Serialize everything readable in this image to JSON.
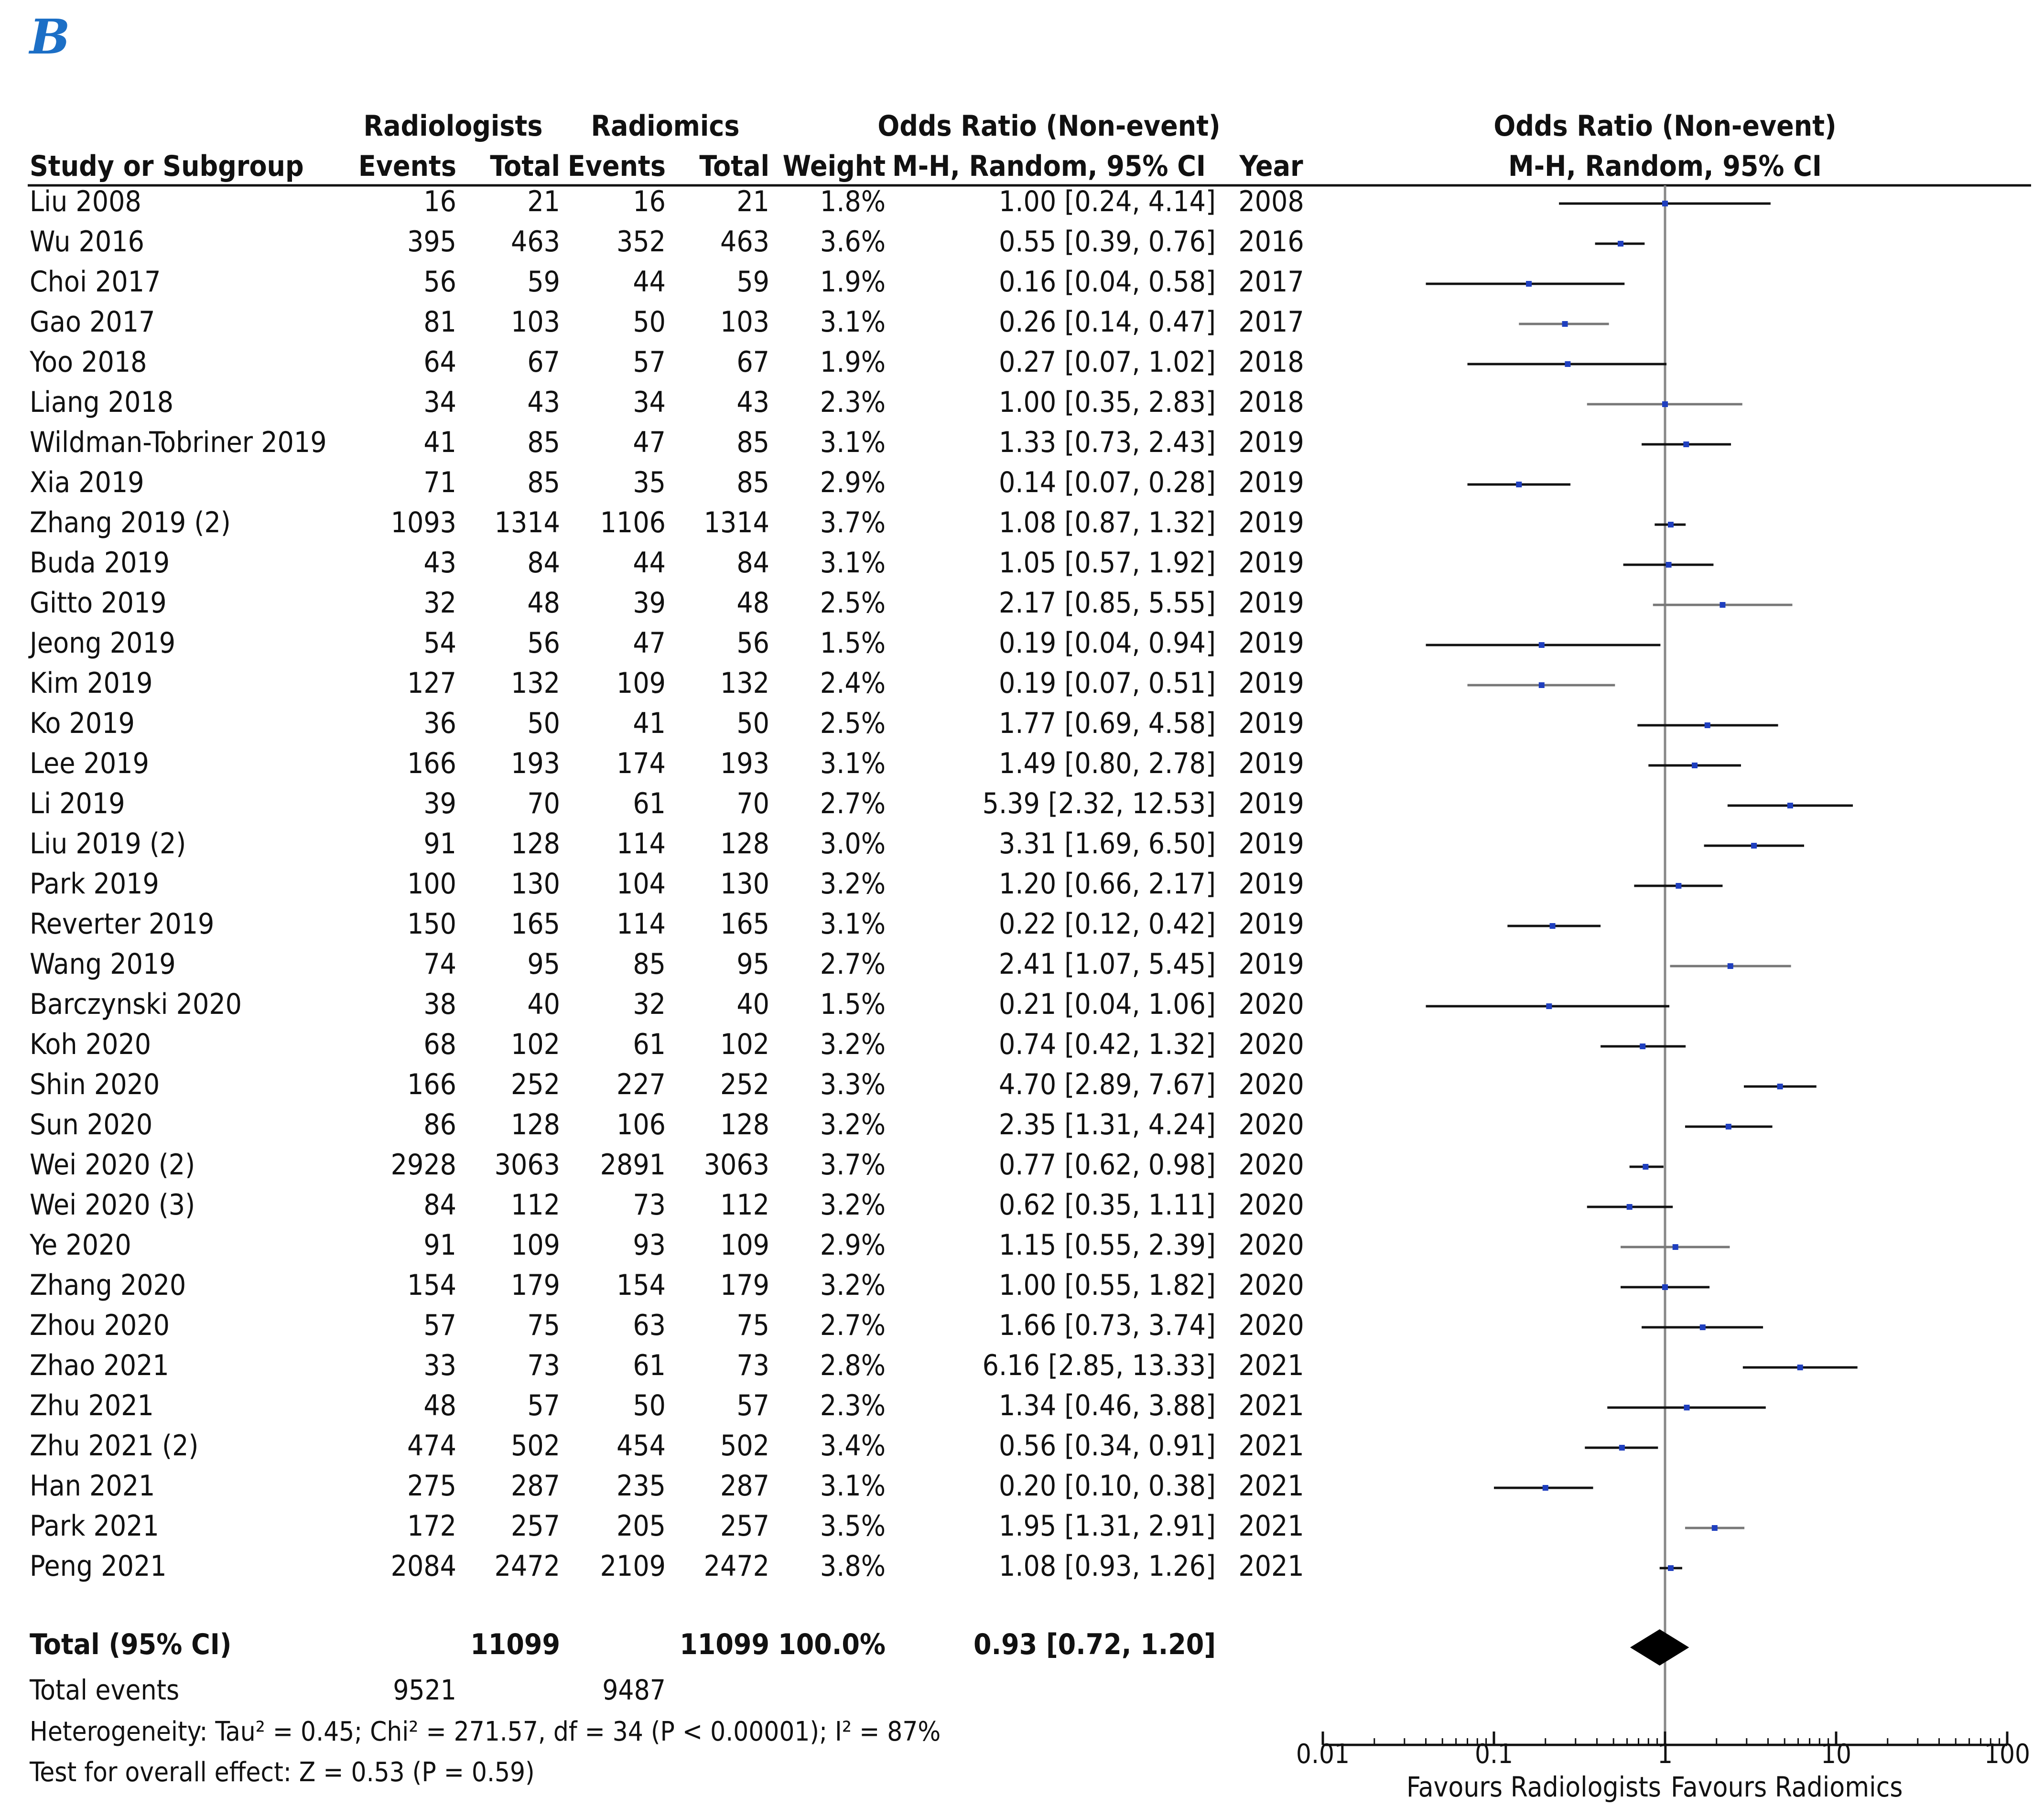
{
  "panel_label": "B",
  "headers": {
    "group_radiologists": "Radiologists",
    "group_radiomics": "Radiomics",
    "odds_ratio_title": "Odds Ratio (Non-event)",
    "odds_ratio_method": "M-H, Random, 95% CI",
    "study": "Study or Subgroup",
    "events": "Events",
    "total": "Total",
    "weight": "Weight",
    "year": "Year"
  },
  "summary": {
    "label": "Total (95% CI)",
    "rad_total": "11099",
    "radiomics_total": "11099",
    "weight": "100.0%",
    "ci_text": "0.93 [0.72, 1.20]",
    "total_events_label": "Total events",
    "rad_events": "9521",
    "radiomics_events": "9487",
    "heterogeneity": "Heterogeneity: Tau² = 0.45; Chi² = 271.57, df = 34 (P < 0.00001); I² = 87%",
    "overall_effect": "Test for overall effect: Z = 0.53 (P = 0.59)"
  },
  "axis": {
    "ticks": [
      "0.01",
      "0.1",
      "1",
      "10",
      "100"
    ],
    "favours_left": "Favours Radiologists",
    "favours_right": "Favours Radiomics"
  },
  "colors": {
    "point": "#1f3fbf",
    "ci_black": "#111111",
    "ci_gray": "#777777",
    "diamond": "#000000",
    "panel": "#1c6fc6"
  },
  "chart_data": {
    "type": "forest",
    "title": "Odds Ratio (Non-event) M-H, Random, 95% CI",
    "x_scale": "log",
    "xlim": [
      0.01,
      100
    ],
    "pooled": {
      "or": 0.93,
      "lo": 0.72,
      "hi": 1.2
    },
    "studies": [
      {
        "study": "Liu 2008",
        "e1": "16",
        "t1": "21",
        "e2": "16",
        "t2": "21",
        "weight": "1.8%",
        "ci": "1.00 [0.24, 4.14]",
        "year": "2008",
        "or": 1.0,
        "lo": 0.24,
        "hi": 4.14,
        "tone": "black"
      },
      {
        "study": "Wu 2016",
        "e1": "395",
        "t1": "463",
        "e2": "352",
        "t2": "463",
        "weight": "3.6%",
        "ci": "0.55 [0.39, 0.76]",
        "year": "2016",
        "or": 0.55,
        "lo": 0.39,
        "hi": 0.76,
        "tone": "black"
      },
      {
        "study": "Choi 2017",
        "e1": "56",
        "t1": "59",
        "e2": "44",
        "t2": "59",
        "weight": "1.9%",
        "ci": "0.16 [0.04, 0.58]",
        "year": "2017",
        "or": 0.16,
        "lo": 0.04,
        "hi": 0.58,
        "tone": "black"
      },
      {
        "study": "Gao 2017",
        "e1": "81",
        "t1": "103",
        "e2": "50",
        "t2": "103",
        "weight": "3.1%",
        "ci": "0.26 [0.14, 0.47]",
        "year": "2017",
        "or": 0.26,
        "lo": 0.14,
        "hi": 0.47,
        "tone": "gray"
      },
      {
        "study": "Yoo 2018",
        "e1": "64",
        "t1": "67",
        "e2": "57",
        "t2": "67",
        "weight": "1.9%",
        "ci": "0.27 [0.07, 1.02]",
        "year": "2018",
        "or": 0.27,
        "lo": 0.07,
        "hi": 1.02,
        "tone": "black"
      },
      {
        "study": "Liang 2018",
        "e1": "34",
        "t1": "43",
        "e2": "34",
        "t2": "43",
        "weight": "2.3%",
        "ci": "1.00 [0.35, 2.83]",
        "year": "2018",
        "or": 1.0,
        "lo": 0.35,
        "hi": 2.83,
        "tone": "gray"
      },
      {
        "study": "Wildman-Tobriner 2019",
        "e1": "41",
        "t1": "85",
        "e2": "47",
        "t2": "85",
        "weight": "3.1%",
        "ci": "1.33 [0.73, 2.43]",
        "year": "2019",
        "or": 1.33,
        "lo": 0.73,
        "hi": 2.43,
        "tone": "black"
      },
      {
        "study": "Xia 2019",
        "e1": "71",
        "t1": "85",
        "e2": "35",
        "t2": "85",
        "weight": "2.9%",
        "ci": "0.14 [0.07, 0.28]",
        "year": "2019",
        "or": 0.14,
        "lo": 0.07,
        "hi": 0.28,
        "tone": "black"
      },
      {
        "study": "Zhang 2019 (2)",
        "e1": "1093",
        "t1": "1314",
        "e2": "1106",
        "t2": "1314",
        "weight": "3.7%",
        "ci": "1.08 [0.87, 1.32]",
        "year": "2019",
        "or": 1.08,
        "lo": 0.87,
        "hi": 1.32,
        "tone": "black"
      },
      {
        "study": "Buda 2019",
        "e1": "43",
        "t1": "84",
        "e2": "44",
        "t2": "84",
        "weight": "3.1%",
        "ci": "1.05 [0.57, 1.92]",
        "year": "2019",
        "or": 1.05,
        "lo": 0.57,
        "hi": 1.92,
        "tone": "black"
      },
      {
        "study": "Gitto 2019",
        "e1": "32",
        "t1": "48",
        "e2": "39",
        "t2": "48",
        "weight": "2.5%",
        "ci": "2.17 [0.85, 5.55]",
        "year": "2019",
        "or": 2.17,
        "lo": 0.85,
        "hi": 5.55,
        "tone": "gray"
      },
      {
        "study": "Jeong 2019",
        "e1": "54",
        "t1": "56",
        "e2": "47",
        "t2": "56",
        "weight": "1.5%",
        "ci": "0.19 [0.04, 0.94]",
        "year": "2019",
        "or": 0.19,
        "lo": 0.04,
        "hi": 0.94,
        "tone": "black"
      },
      {
        "study": "Kim 2019",
        "e1": "127",
        "t1": "132",
        "e2": "109",
        "t2": "132",
        "weight": "2.4%",
        "ci": "0.19 [0.07, 0.51]",
        "year": "2019",
        "or": 0.19,
        "lo": 0.07,
        "hi": 0.51,
        "tone": "gray"
      },
      {
        "study": "Ko 2019",
        "e1": "36",
        "t1": "50",
        "e2": "41",
        "t2": "50",
        "weight": "2.5%",
        "ci": "1.77 [0.69, 4.58]",
        "year": "2019",
        "or": 1.77,
        "lo": 0.69,
        "hi": 4.58,
        "tone": "black"
      },
      {
        "study": "Lee 2019",
        "e1": "166",
        "t1": "193",
        "e2": "174",
        "t2": "193",
        "weight": "3.1%",
        "ci": "1.49 [0.80, 2.78]",
        "year": "2019",
        "or": 1.49,
        "lo": 0.8,
        "hi": 2.78,
        "tone": "black"
      },
      {
        "study": "Li 2019",
        "e1": "39",
        "t1": "70",
        "e2": "61",
        "t2": "70",
        "weight": "2.7%",
        "ci": "5.39 [2.32, 12.53]",
        "year": "2019",
        "or": 5.39,
        "lo": 2.32,
        "hi": 12.53,
        "tone": "black"
      },
      {
        "study": "Liu 2019 (2)",
        "e1": "91",
        "t1": "128",
        "e2": "114",
        "t2": "128",
        "weight": "3.0%",
        "ci": "3.31 [1.69, 6.50]",
        "year": "2019",
        "or": 3.31,
        "lo": 1.69,
        "hi": 6.5,
        "tone": "black"
      },
      {
        "study": "Park 2019",
        "e1": "100",
        "t1": "130",
        "e2": "104",
        "t2": "130",
        "weight": "3.2%",
        "ci": "1.20 [0.66, 2.17]",
        "year": "2019",
        "or": 1.2,
        "lo": 0.66,
        "hi": 2.17,
        "tone": "black"
      },
      {
        "study": "Reverter 2019",
        "e1": "150",
        "t1": "165",
        "e2": "114",
        "t2": "165",
        "weight": "3.1%",
        "ci": "0.22 [0.12, 0.42]",
        "year": "2019",
        "or": 0.22,
        "lo": 0.12,
        "hi": 0.42,
        "tone": "black"
      },
      {
        "study": "Wang 2019",
        "e1": "74",
        "t1": "95",
        "e2": "85",
        "t2": "95",
        "weight": "2.7%",
        "ci": "2.41 [1.07, 5.45]",
        "year": "2019",
        "or": 2.41,
        "lo": 1.07,
        "hi": 5.45,
        "tone": "gray"
      },
      {
        "study": "Barczynski 2020",
        "e1": "38",
        "t1": "40",
        "e2": "32",
        "t2": "40",
        "weight": "1.5%",
        "ci": "0.21 [0.04, 1.06]",
        "year": "2020",
        "or": 0.21,
        "lo": 0.04,
        "hi": 1.06,
        "tone": "black"
      },
      {
        "study": "Koh 2020",
        "e1": "68",
        "t1": "102",
        "e2": "61",
        "t2": "102",
        "weight": "3.2%",
        "ci": "0.74 [0.42, 1.32]",
        "year": "2020",
        "or": 0.74,
        "lo": 0.42,
        "hi": 1.32,
        "tone": "black"
      },
      {
        "study": "Shin 2020",
        "e1": "166",
        "t1": "252",
        "e2": "227",
        "t2": "252",
        "weight": "3.3%",
        "ci": "4.70 [2.89, 7.67]",
        "year": "2020",
        "or": 4.7,
        "lo": 2.89,
        "hi": 7.67,
        "tone": "black"
      },
      {
        "study": "Sun 2020",
        "e1": "86",
        "t1": "128",
        "e2": "106",
        "t2": "128",
        "weight": "3.2%",
        "ci": "2.35 [1.31, 4.24]",
        "year": "2020",
        "or": 2.35,
        "lo": 1.31,
        "hi": 4.24,
        "tone": "black"
      },
      {
        "study": "Wei 2020 (2)",
        "e1": "2928",
        "t1": "3063",
        "e2": "2891",
        "t2": "3063",
        "weight": "3.7%",
        "ci": "0.77 [0.62, 0.98]",
        "year": "2020",
        "or": 0.77,
        "lo": 0.62,
        "hi": 0.98,
        "tone": "black"
      },
      {
        "study": "Wei 2020 (3)",
        "e1": "84",
        "t1": "112",
        "e2": "73",
        "t2": "112",
        "weight": "3.2%",
        "ci": "0.62 [0.35, 1.11]",
        "year": "2020",
        "or": 0.62,
        "lo": 0.35,
        "hi": 1.11,
        "tone": "black"
      },
      {
        "study": "Ye 2020",
        "e1": "91",
        "t1": "109",
        "e2": "93",
        "t2": "109",
        "weight": "2.9%",
        "ci": "1.15 [0.55, 2.39]",
        "year": "2020",
        "or": 1.15,
        "lo": 0.55,
        "hi": 2.39,
        "tone": "gray"
      },
      {
        "study": "Zhang 2020",
        "e1": "154",
        "t1": "179",
        "e2": "154",
        "t2": "179",
        "weight": "3.2%",
        "ci": "1.00 [0.55, 1.82]",
        "year": "2020",
        "or": 1.0,
        "lo": 0.55,
        "hi": 1.82,
        "tone": "black"
      },
      {
        "study": "Zhou 2020",
        "e1": "57",
        "t1": "75",
        "e2": "63",
        "t2": "75",
        "weight": "2.7%",
        "ci": "1.66 [0.73, 3.74]",
        "year": "2020",
        "or": 1.66,
        "lo": 0.73,
        "hi": 3.74,
        "tone": "black"
      },
      {
        "study": "Zhao 2021",
        "e1": "33",
        "t1": "73",
        "e2": "61",
        "t2": "73",
        "weight": "2.8%",
        "ci": "6.16 [2.85, 13.33]",
        "year": "2021",
        "or": 6.16,
        "lo": 2.85,
        "hi": 13.33,
        "tone": "black"
      },
      {
        "study": "Zhu 2021",
        "e1": "48",
        "t1": "57",
        "e2": "50",
        "t2": "57",
        "weight": "2.3%",
        "ci": "1.34 [0.46, 3.88]",
        "year": "2021",
        "or": 1.34,
        "lo": 0.46,
        "hi": 3.88,
        "tone": "black"
      },
      {
        "study": "Zhu 2021 (2)",
        "e1": "474",
        "t1": "502",
        "e2": "454",
        "t2": "502",
        "weight": "3.4%",
        "ci": "0.56 [0.34, 0.91]",
        "year": "2021",
        "or": 0.56,
        "lo": 0.34,
        "hi": 0.91,
        "tone": "black"
      },
      {
        "study": "Han 2021",
        "e1": "275",
        "t1": "287",
        "e2": "235",
        "t2": "287",
        "weight": "3.1%",
        "ci": "0.20 [0.10, 0.38]",
        "year": "2021",
        "or": 0.2,
        "lo": 0.1,
        "hi": 0.38,
        "tone": "black"
      },
      {
        "study": "Park 2021",
        "e1": "172",
        "t1": "257",
        "e2": "205",
        "t2": "257",
        "weight": "3.5%",
        "ci": "1.95 [1.31, 2.91]",
        "year": "2021",
        "or": 1.95,
        "lo": 1.31,
        "hi": 2.91,
        "tone": "gray"
      },
      {
        "study": "Peng 2021",
        "e1": "2084",
        "t1": "2472",
        "e2": "2109",
        "t2": "2472",
        "weight": "3.8%",
        "ci": "1.08 [0.93, 1.26]",
        "year": "2021",
        "or": 1.08,
        "lo": 0.93,
        "hi": 1.26,
        "tone": "black"
      }
    ]
  }
}
